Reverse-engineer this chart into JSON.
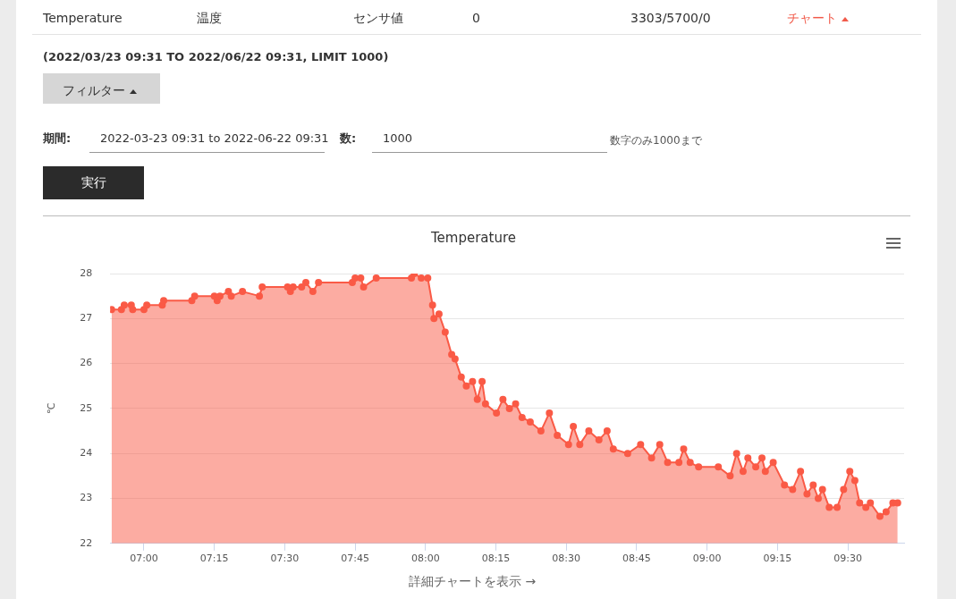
{
  "chart_data": {
    "type": "area",
    "title": "Temperature",
    "ylabel": "℃",
    "x": [
      6.885,
      6.92,
      6.93,
      6.955,
      6.96,
      7.0,
      7.01,
      7.065,
      7.07,
      7.17,
      7.18,
      7.25,
      7.26,
      7.27,
      7.3,
      7.31,
      7.35,
      7.41,
      7.42,
      7.51,
      7.52,
      7.53,
      7.56,
      7.575,
      7.6,
      7.62,
      7.74,
      7.75,
      7.77,
      7.78,
      7.825,
      7.95,
      7.96,
      7.985,
      8.008,
      8.025,
      8.03,
      8.048,
      8.07,
      8.093,
      8.105,
      8.127,
      8.145,
      8.167,
      8.184,
      8.201,
      8.213,
      8.252,
      8.275,
      8.298,
      8.32,
      8.343,
      8.372,
      8.41,
      8.44,
      8.468,
      8.508,
      8.525,
      8.548,
      8.58,
      8.616,
      8.645,
      8.667,
      8.718,
      8.764,
      8.803,
      8.832,
      8.86,
      8.9,
      8.917,
      8.94,
      8.97,
      9.04,
      9.082,
      9.105,
      9.128,
      9.145,
      9.173,
      9.195,
      9.207,
      9.235,
      9.275,
      9.304,
      9.332,
      9.355,
      9.377,
      9.395,
      9.41,
      9.434,
      9.462,
      9.485,
      9.507,
      9.525,
      9.542,
      9.564,
      9.58,
      9.614,
      9.636,
      9.66,
      9.677
    ],
    "series": [
      {
        "color": "#fa5a46",
        "values": [
          27.2,
          27.2,
          27.3,
          27.3,
          27.2,
          27.2,
          27.3,
          27.3,
          27.4,
          27.4,
          27.5,
          27.5,
          27.4,
          27.5,
          27.6,
          27.5,
          27.6,
          27.5,
          27.7,
          27.7,
          27.6,
          27.7,
          27.7,
          27.8,
          27.6,
          27.8,
          27.8,
          27.9,
          27.9,
          27.7,
          27.9,
          27.9,
          28.0,
          27.9,
          27.9,
          27.3,
          27.0,
          27.1,
          26.7,
          26.2,
          26.1,
          25.7,
          25.5,
          25.6,
          25.2,
          25.6,
          25.1,
          24.9,
          25.2,
          25.0,
          25.1,
          24.8,
          24.7,
          24.5,
          24.9,
          24.4,
          24.2,
          24.6,
          24.2,
          24.5,
          24.3,
          24.5,
          24.1,
          24.0,
          24.2,
          23.9,
          24.2,
          23.8,
          23.8,
          24.1,
          23.8,
          23.7,
          23.7,
          23.5,
          24.0,
          23.6,
          23.9,
          23.7,
          23.9,
          23.6,
          23.8,
          23.3,
          23.2,
          23.6,
          23.1,
          23.3,
          23.0,
          23.2,
          22.8,
          22.8,
          23.2,
          23.6,
          23.4,
          22.9,
          22.8,
          22.9,
          22.6,
          22.7,
          22.9,
          22.9
        ]
      }
    ],
    "xlim": [
      6.88,
      9.7
    ],
    "xticks": [
      {
        "value": 7,
        "label": "07:00"
      },
      {
        "value": 7.25,
        "label": "07:15"
      },
      {
        "value": 7.5,
        "label": "07:30"
      },
      {
        "value": 7.75,
        "label": "07:45"
      },
      {
        "value": 8,
        "label": "08:00"
      },
      {
        "value": 8.25,
        "label": "08:15"
      },
      {
        "value": 8.5,
        "label": "08:30"
      },
      {
        "value": 8.75,
        "label": "08:45"
      },
      {
        "value": 9,
        "label": "09:00"
      },
      {
        "value": 9.25,
        "label": "09:15"
      },
      {
        "value": 9.5,
        "label": "09:30"
      }
    ],
    "ylim": [
      22,
      28
    ],
    "yticks": [
      22,
      23,
      24,
      25,
      26,
      27,
      28
    ],
    "grid": "y",
    "legend": false,
    "marker": "circle",
    "line_style": "solid",
    "annotations": [
      "Temperature",
      "温度",
      "センサ値",
      "0",
      "3303/5700/0",
      "チャート",
      "(2022/03/23 09:31 TO 2022/06/22 09:31, LIMIT 1000)",
      "フィルター",
      "期間:",
      "2022-03-23 09:31 to 2022-06-22 09:31",
      "数:",
      "1000",
      "数字のみ1000まで",
      "実行",
      "詳細チャートを表示 →"
    ]
  }
}
